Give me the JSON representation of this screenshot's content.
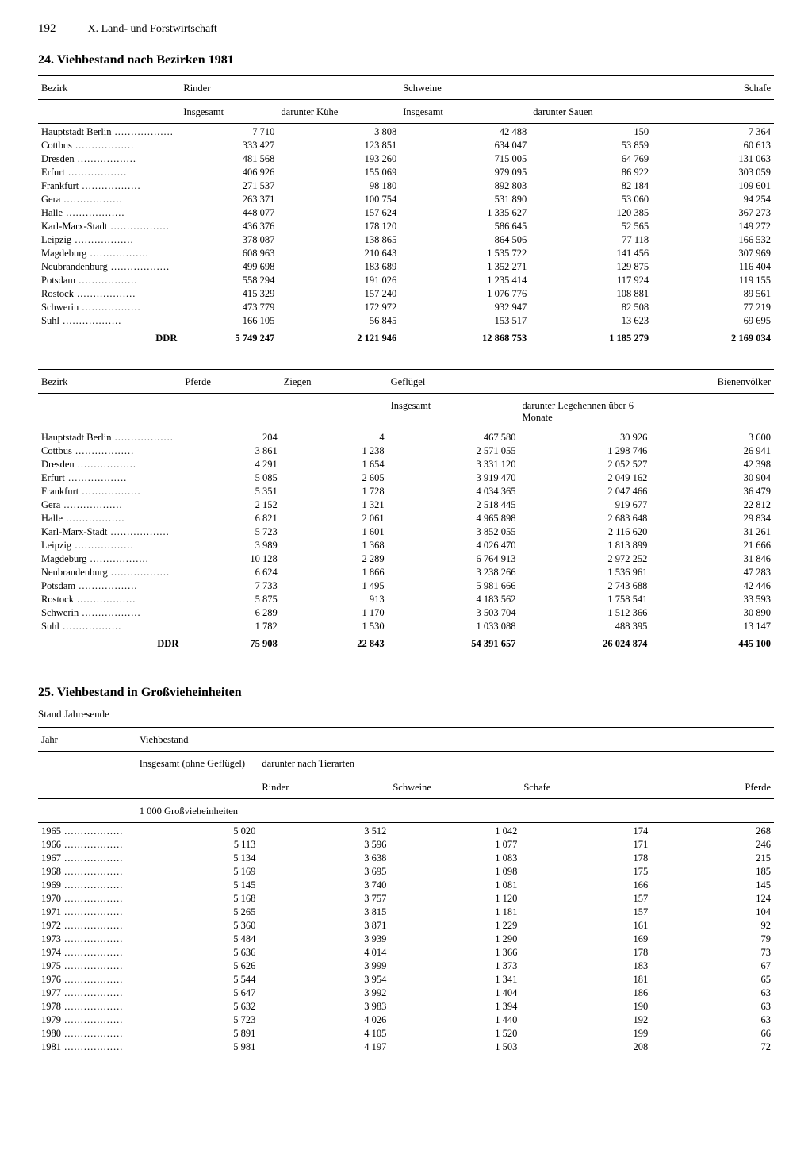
{
  "page": {
    "number": "192",
    "section": "X. Land- und Forstwirtschaft"
  },
  "table24": {
    "title": "24. Viehbestand nach Bezirken 1981",
    "col_bezirk": "Bezirk",
    "partA": {
      "groups": {
        "rinder": "Rinder",
        "schweine": "Schweine",
        "schafe": "Schafe",
        "rinder_ins": "Insgesamt",
        "rinder_kuhe": "darunter Kühe",
        "schweine_ins": "Insgesamt",
        "schweine_sauen": "darunter Sauen"
      },
      "rows": [
        {
          "bezirk": "Hauptstadt Berlin",
          "v": [
            "7 710",
            "3 808",
            "42 488",
            "150",
            "7 364"
          ]
        },
        {
          "bezirk": "Cottbus",
          "v": [
            "333 427",
            "123 851",
            "634 047",
            "53 859",
            "60 613"
          ]
        },
        {
          "bezirk": "Dresden",
          "v": [
            "481 568",
            "193 260",
            "715 005",
            "64 769",
            "131 063"
          ]
        },
        {
          "bezirk": "Erfurt",
          "v": [
            "406 926",
            "155 069",
            "979 095",
            "86 922",
            "303 059"
          ]
        },
        {
          "bezirk": "Frankfurt",
          "v": [
            "271 537",
            "98 180",
            "892 803",
            "82 184",
            "109 601"
          ]
        },
        {
          "bezirk": "Gera",
          "v": [
            "263 371",
            "100 754",
            "531 890",
            "53 060",
            "94 254"
          ]
        },
        {
          "bezirk": "Halle",
          "v": [
            "448 077",
            "157 624",
            "1 335 627",
            "120 385",
            "367 273"
          ]
        },
        {
          "bezirk": "Karl-Marx-Stadt",
          "v": [
            "436 376",
            "178 120",
            "586 645",
            "52 565",
            "149 272"
          ]
        },
        {
          "bezirk": "Leipzig",
          "v": [
            "378 087",
            "138 865",
            "864 506",
            "77 118",
            "166 532"
          ]
        },
        {
          "bezirk": "Magdeburg",
          "v": [
            "608 963",
            "210 643",
            "1 535 722",
            "141 456",
            "307 969"
          ]
        },
        {
          "bezirk": "Neubrandenburg",
          "v": [
            "499 698",
            "183 689",
            "1 352 271",
            "129 875",
            "116 404"
          ]
        },
        {
          "bezirk": "Potsdam",
          "v": [
            "558 294",
            "191 026",
            "1 235 414",
            "117 924",
            "119 155"
          ]
        },
        {
          "bezirk": "Rostock",
          "v": [
            "415 329",
            "157 240",
            "1 076 776",
            "108 881",
            "89 561"
          ]
        },
        {
          "bezirk": "Schwerin",
          "v": [
            "473 779",
            "172 972",
            "932 947",
            "82 508",
            "77 219"
          ]
        },
        {
          "bezirk": "Suhl",
          "v": [
            "166 105",
            "56 845",
            "153 517",
            "13 623",
            "69 695"
          ]
        }
      ],
      "total": {
        "label": "DDR",
        "v": [
          "5 749 247",
          "2 121 946",
          "12 868 753",
          "1 185 279",
          "2 169 034"
        ]
      }
    },
    "partB": {
      "groups": {
        "pferde": "Pferde",
        "ziegen": "Ziegen",
        "gefluegel": "Geflügel",
        "bienen": "Bienenvölker",
        "gef_ins": "Insgesamt",
        "gef_lege": "darunter Legehennen über 6 Monate"
      },
      "rows": [
        {
          "bezirk": "Hauptstadt Berlin",
          "v": [
            "204",
            "4",
            "467 580",
            "30 926",
            "3 600"
          ]
        },
        {
          "bezirk": "Cottbus",
          "v": [
            "3 861",
            "1 238",
            "2 571 055",
            "1 298 746",
            "26 941"
          ]
        },
        {
          "bezirk": "Dresden",
          "v": [
            "4 291",
            "1 654",
            "3 331 120",
            "2 052 527",
            "42 398"
          ]
        },
        {
          "bezirk": "Erfurt",
          "v": [
            "5 085",
            "2 605",
            "3 919 470",
            "2 049 162",
            "30 904"
          ]
        },
        {
          "bezirk": "Frankfurt",
          "v": [
            "5 351",
            "1 728",
            "4 034 365",
            "2 047 466",
            "36 479"
          ]
        },
        {
          "bezirk": "Gera",
          "v": [
            "2 152",
            "1 321",
            "2 518 445",
            "919 677",
            "22 812"
          ]
        },
        {
          "bezirk": "Halle",
          "v": [
            "6 821",
            "2 061",
            "4 965 898",
            "2 683 648",
            "29 834"
          ]
        },
        {
          "bezirk": "Karl-Marx-Stadt",
          "v": [
            "5 723",
            "1 601",
            "3 852 055",
            "2 116 620",
            "31 261"
          ]
        },
        {
          "bezirk": "Leipzig",
          "v": [
            "3 989",
            "1 368",
            "4 026 470",
            "1 813 899",
            "21 666"
          ]
        },
        {
          "bezirk": "Magdeburg",
          "v": [
            "10 128",
            "2 289",
            "6 764 913",
            "2 972 252",
            "31 846"
          ]
        },
        {
          "bezirk": "Neubrandenburg",
          "v": [
            "6 624",
            "1 866",
            "3 238 266",
            "1 536 961",
            "47 283"
          ]
        },
        {
          "bezirk": "Potsdam",
          "v": [
            "7 733",
            "1 495",
            "5 981 666",
            "2 743 688",
            "42 446"
          ]
        },
        {
          "bezirk": "Rostock",
          "v": [
            "5 875",
            "913",
            "4 183 562",
            "1 758 541",
            "33 593"
          ]
        },
        {
          "bezirk": "Schwerin",
          "v": [
            "6 289",
            "1 170",
            "3 503 704",
            "1 512 366",
            "30 890"
          ]
        },
        {
          "bezirk": "Suhl",
          "v": [
            "1 782",
            "1 530",
            "1 033 088",
            "488 395",
            "13 147"
          ]
        }
      ],
      "total": {
        "label": "DDR",
        "v": [
          "75 908",
          "22 843",
          "54 391 657",
          "26 024 874",
          "445 100"
        ]
      }
    }
  },
  "table25": {
    "title": "25. Viehbestand in Großvieheinheiten",
    "subtitle": "Stand Jahresende",
    "headers": {
      "jahr": "Jahr",
      "viehbestand": "Viehbestand",
      "insgesamt": "Insgesamt (ohne Geflügel)",
      "darunter": "darunter nach Tierarten",
      "rinder": "Rinder",
      "schweine": "Schweine",
      "schafe": "Schafe",
      "pferde": "Pferde",
      "unit": "1 000 Großvieheinheiten"
    },
    "rows": [
      {
        "jahr": "1965",
        "v": [
          "5 020",
          "3 512",
          "1 042",
          "174",
          "268"
        ]
      },
      {
        "jahr": "1966",
        "v": [
          "5 113",
          "3 596",
          "1 077",
          "171",
          "246"
        ]
      },
      {
        "jahr": "1967",
        "v": [
          "5 134",
          "3 638",
          "1 083",
          "178",
          "215"
        ]
      },
      {
        "jahr": "1968",
        "v": [
          "5 169",
          "3 695",
          "1 098",
          "175",
          "185"
        ]
      },
      {
        "jahr": "1969",
        "v": [
          "5 145",
          "3 740",
          "1 081",
          "166",
          "145"
        ]
      },
      {
        "jahr": "1970",
        "v": [
          "5 168",
          "3 757",
          "1 120",
          "157",
          "124"
        ]
      },
      {
        "jahr": "1971",
        "v": [
          "5 265",
          "3 815",
          "1 181",
          "157",
          "104"
        ]
      },
      {
        "jahr": "1972",
        "v": [
          "5 360",
          "3 871",
          "1 229",
          "161",
          "92"
        ]
      },
      {
        "jahr": "1973",
        "v": [
          "5 484",
          "3 939",
          "1 290",
          "169",
          "79"
        ]
      },
      {
        "jahr": "1974",
        "v": [
          "5 636",
          "4 014",
          "1 366",
          "178",
          "73"
        ]
      },
      {
        "jahr": "1975",
        "v": [
          "5 626",
          "3 999",
          "1 373",
          "183",
          "67"
        ]
      },
      {
        "jahr": "1976",
        "v": [
          "5 544",
          "3 954",
          "1 341",
          "181",
          "65"
        ]
      },
      {
        "jahr": "1977",
        "v": [
          "5 647",
          "3 992",
          "1 404",
          "186",
          "63"
        ]
      },
      {
        "jahr": "1978",
        "v": [
          "5 632",
          "3 983",
          "1 394",
          "190",
          "63"
        ]
      },
      {
        "jahr": "1979",
        "v": [
          "5 723",
          "4 026",
          "1 440",
          "192",
          "63"
        ]
      },
      {
        "jahr": "1980",
        "v": [
          "5 891",
          "4 105",
          "1 520",
          "199",
          "66"
        ]
      },
      {
        "jahr": "1981",
        "v": [
          "5 981",
          "4 197",
          "1 503",
          "208",
          "72"
        ]
      }
    ]
  }
}
